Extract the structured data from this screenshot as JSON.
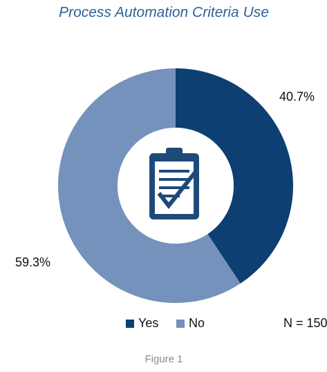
{
  "chart_data": {
    "type": "pie",
    "title": "Process Automation Criteria Use",
    "categories": [
      "Yes",
      "No"
    ],
    "values": [
      40.7,
      59.3
    ],
    "value_labels": [
      "40.7%",
      "59.3%"
    ],
    "colors": [
      "#0d3f72",
      "#7492bb"
    ],
    "annotation": "N = 150",
    "caption": "Figure 1"
  }
}
